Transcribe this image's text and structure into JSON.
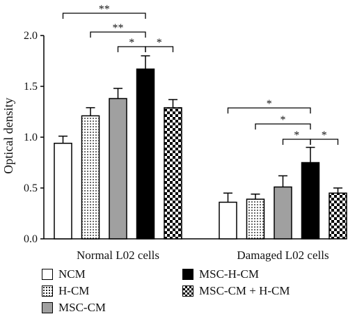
{
  "chart_data": {
    "type": "bar",
    "ylabel": "Optical density",
    "ylim": [
      0,
      2.0
    ],
    "yticks": [
      "0.0",
      "0.5",
      "1.0",
      "1.5",
      "2.0"
    ],
    "categories": [
      "Normal L02 cells",
      "Damaged L02 cells"
    ],
    "series": [
      {
        "name": "NCM",
        "values": [
          0.94,
          0.36
        ],
        "errors": [
          0.07,
          0.09
        ],
        "fill": "white"
      },
      {
        "name": "H-CM",
        "values": [
          1.21,
          0.39
        ],
        "errors": [
          0.08,
          0.05
        ],
        "fill": "dots"
      },
      {
        "name": "MSC-CM",
        "values": [
          1.38,
          0.51
        ],
        "errors": [
          0.1,
          0.11
        ],
        "fill": "gray"
      },
      {
        "name": "MSC-H-CM",
        "values": [
          1.67,
          0.75
        ],
        "errors": [
          0.13,
          0.15
        ],
        "fill": "black"
      },
      {
        "name": "MSC-CM + H-CM",
        "values": [
          1.29,
          0.45
        ],
        "errors": [
          0.08,
          0.05
        ],
        "fill": "checker"
      }
    ],
    "significance": [
      {
        "group": 0,
        "from": 0,
        "to": 3,
        "label": "**"
      },
      {
        "group": 0,
        "from": 1,
        "to": 3,
        "label": "**"
      },
      {
        "group": 0,
        "from": 2,
        "to": 3,
        "label": "*"
      },
      {
        "group": 0,
        "from": 3,
        "to": 4,
        "label": "*"
      },
      {
        "group": 1,
        "from": 0,
        "to": 3,
        "label": "*"
      },
      {
        "group": 1,
        "from": 1,
        "to": 3,
        "label": "*"
      },
      {
        "group": 1,
        "from": 2,
        "to": 3,
        "label": "*"
      },
      {
        "group": 1,
        "from": 3,
        "to": 4,
        "label": "*"
      }
    ],
    "legend_position": "bottom",
    "grid": false,
    "colors": {
      "gray": "#a0a0a0",
      "black": "#000000",
      "white": "#ffffff"
    }
  }
}
